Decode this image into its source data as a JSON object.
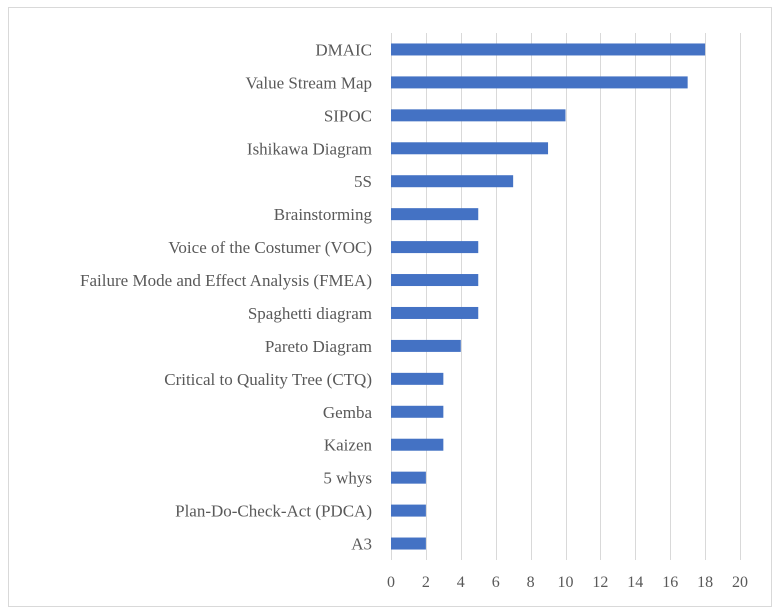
{
  "chart_data": {
    "type": "bar",
    "orientation": "horizontal",
    "categories": [
      "DMAIC",
      "Value Stream Map",
      "SIPOC",
      "Ishikawa Diagram",
      "5S",
      "Brainstorming",
      "Voice of the Costumer (VOC)",
      "Failure Mode and Effect Analysis (FMEA)",
      "Spaghetti diagram",
      "Pareto Diagram",
      "Critical to Quality Tree (CTQ)",
      "Gemba",
      "Kaizen",
      "5 whys",
      "Plan-Do-Check-Act (PDCA)",
      "A3"
    ],
    "values": [
      18,
      17,
      10,
      9,
      7,
      5,
      5,
      5,
      5,
      4,
      3,
      3,
      3,
      2,
      2,
      2
    ],
    "xlim": [
      0,
      20
    ],
    "xticks": [
      "0",
      "2",
      "4",
      "6",
      "8",
      "10",
      "12",
      "14",
      "16",
      "18",
      "20"
    ],
    "grid": "vertical",
    "legend": "none",
    "bar_color": "#4472c4"
  }
}
